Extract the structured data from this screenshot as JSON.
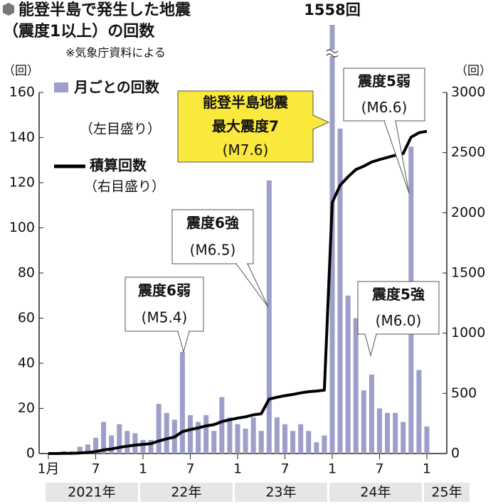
{
  "chart_data": {
    "type": "bar+line",
    "title": [
      "能登半島で発生した地震",
      "（震度1以上）の回数"
    ],
    "source": "※気象庁資料による",
    "y_unit": "（回）",
    "y2_unit": "（回）",
    "categories": [
      "1月",
      null,
      null,
      null,
      null,
      null,
      "7",
      null,
      null,
      null,
      null,
      null,
      "1",
      null,
      null,
      null,
      null,
      null,
      "7",
      null,
      null,
      null,
      null,
      null,
      "1",
      null,
      null,
      null,
      null,
      null,
      "7",
      null,
      null,
      null,
      null,
      null,
      "1",
      null,
      null,
      null,
      null,
      null,
      "7",
      null,
      null,
      null,
      null,
      null,
      "1"
    ],
    "years": [
      "2021年",
      "22年",
      "23年",
      "24年",
      "25年"
    ],
    "series": [
      {
        "name": "月ごとの回数",
        "note": "（左目盛り）",
        "color": "#9d9ec9",
        "type": "bar",
        "values": [
          0,
          0,
          1,
          1,
          3,
          4,
          7,
          14,
          8,
          13,
          10,
          9,
          6,
          6,
          22,
          18,
          15,
          45,
          17,
          14,
          17,
          10,
          25,
          16,
          13,
          11,
          16,
          10,
          121,
          16,
          13,
          10,
          13,
          10,
          5,
          8,
          1558,
          144,
          70,
          60,
          28,
          35,
          20,
          18,
          18,
          14,
          136,
          37,
          12
        ],
        "value_labels": [
          null,
          null,
          null,
          null,
          null,
          null,
          null,
          null,
          null,
          null,
          null,
          null,
          null,
          null,
          null,
          null,
          null,
          null,
          null,
          null,
          null,
          null,
          null,
          null,
          null,
          null,
          null,
          null,
          null,
          null,
          null,
          null,
          null,
          null,
          null,
          null,
          "1558回",
          null,
          null,
          null,
          null,
          null,
          null,
          null,
          null,
          null,
          null,
          null,
          null
        ]
      },
      {
        "name": "積算回数",
        "note": "（右目盛り）",
        "color": "#000000",
        "type": "line",
        "axis": "y2",
        "values": [
          0,
          0,
          1,
          2,
          5,
          9,
          16,
          30,
          38,
          51,
          61,
          70,
          76,
          82,
          104,
          122,
          137,
          182,
          199,
          213,
          230,
          240,
          265,
          281,
          294,
          305,
          321,
          331,
          452,
          468,
          481,
          491,
          504,
          514,
          519,
          527,
          2085,
          2229,
          2299,
          2359,
          2387,
          2422,
          2442,
          2460,
          2478,
          2492,
          2628,
          2665,
          2677
        ]
      }
    ],
    "ylim": [
      0,
      160
    ],
    "yticks": [
      0,
      20,
      40,
      60,
      80,
      100,
      120,
      140,
      160
    ],
    "y2lim": [
      0,
      3000
    ],
    "y2ticks": [
      0,
      500,
      1000,
      1500,
      2000,
      2500,
      3000
    ],
    "annotations": [
      {
        "lines": [
          "震度6弱",
          "(M5.4)"
        ]
      },
      {
        "lines": [
          "震度6強",
          "(M6.5)"
        ]
      },
      {
        "lines": [
          "能登半島地震",
          "最大震度7",
          "(M7.6)"
        ],
        "color": "#fbe83c"
      },
      {
        "lines": [
          "震度5弱",
          "(M6.6)"
        ]
      },
      {
        "lines": [
          "震度5強",
          "(M6.0)"
        ]
      }
    ]
  }
}
